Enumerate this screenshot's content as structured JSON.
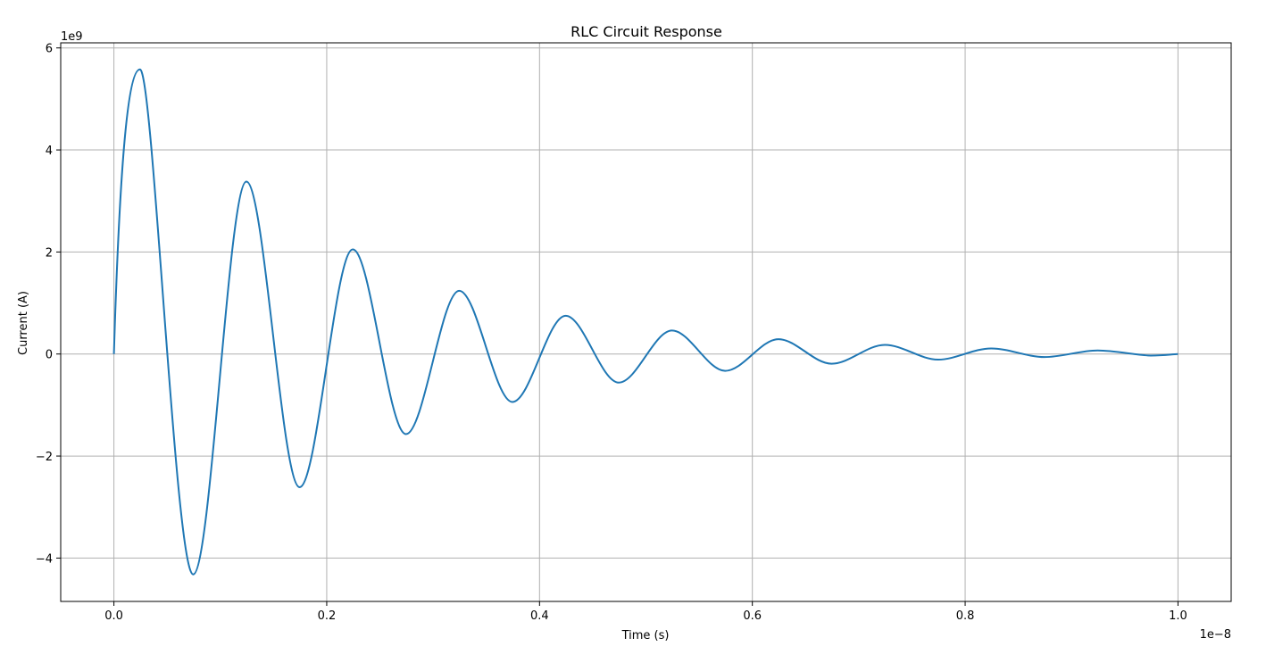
{
  "chart_data": {
    "type": "line",
    "title": "RLC Circuit Response",
    "xlabel": "Time (s)",
    "ylabel": "Current (A)",
    "x_offset_text": "1e−8",
    "y_offset_text": "1e9",
    "xlim": [
      -0.05,
      1.05
    ],
    "ylim": [
      -4.85,
      6.1
    ],
    "x_scale": 1e-08,
    "y_scale": 1000000000.0,
    "xticks": [
      0.0,
      0.2,
      0.4,
      0.6,
      0.8,
      1.0
    ],
    "xtick_labels": [
      "0.0",
      "0.2",
      "0.4",
      "0.6",
      "0.8",
      "1.0"
    ],
    "yticks": [
      -4,
      -2,
      0,
      2,
      4,
      6
    ],
    "ytick_labels": [
      "−4",
      "−2",
      "0",
      "2",
      "4",
      "6"
    ],
    "grid": true,
    "colors": {
      "line": "#1f77b4",
      "grid": "#b0b0b0",
      "axes": "#000000"
    },
    "series": [
      {
        "values_note": "x in units of 1e-8 s, y in units of 1e9 A",
        "x": [
          0.0,
          0.0245,
          0.0745,
          0.1245,
          0.1745,
          0.2245,
          0.2745,
          0.3245,
          0.3745,
          0.4245,
          0.4745,
          0.5245,
          0.5745,
          0.6245,
          0.6745,
          0.7245,
          0.7745,
          0.8245,
          0.8745,
          0.9245,
          0.9745,
          1.0
        ],
        "y": [
          0.0,
          5.58,
          -4.32,
          3.38,
          -2.61,
          2.05,
          -1.57,
          1.24,
          -0.94,
          0.75,
          -0.56,
          0.46,
          -0.33,
          0.29,
          -0.19,
          0.18,
          -0.11,
          0.11,
          -0.06,
          0.07,
          -0.03,
          0.0
        ]
      }
    ]
  }
}
